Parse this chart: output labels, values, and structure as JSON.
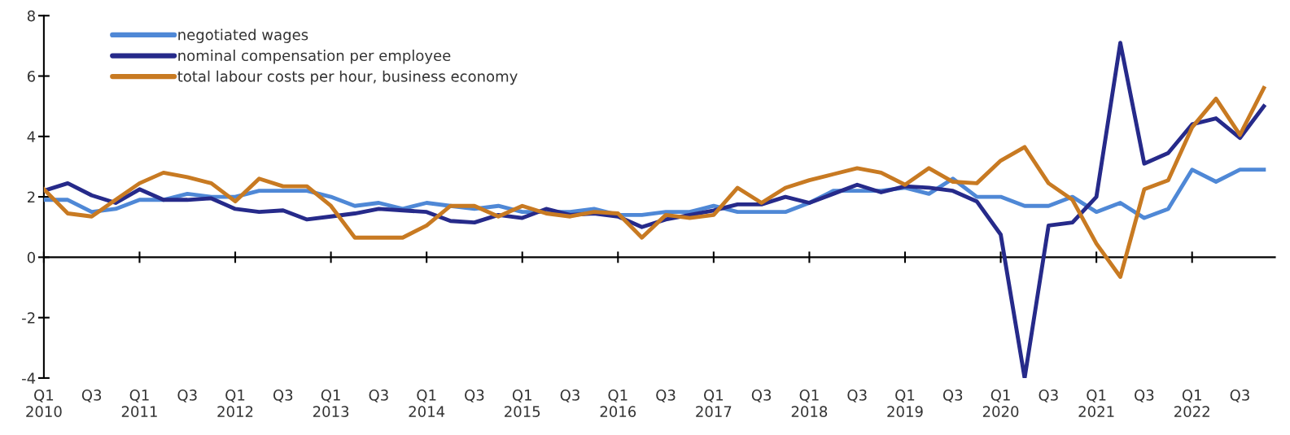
{
  "chart_data": {
    "type": "line",
    "categories": [
      "Q1\n2010",
      null,
      "Q3",
      null,
      "Q1\n2011",
      null,
      "Q3",
      null,
      "Q1\n2012",
      null,
      "Q3",
      null,
      "Q1\n2013",
      null,
      "Q3",
      null,
      "Q1\n2014",
      null,
      "Q3",
      null,
      "Q1\n2015",
      null,
      "Q3",
      null,
      "Q1\n2016",
      null,
      "Q3",
      null,
      "Q1\n2017",
      null,
      "Q3",
      null,
      "Q1\n2018",
      null,
      "Q3",
      null,
      "Q1\n2019",
      null,
      "Q3",
      null,
      "Q1\n2020",
      null,
      "Q3",
      null,
      "Q1\n2021",
      null,
      "Q3",
      null,
      "Q1\n2022",
      null,
      "Q3",
      null
    ],
    "series": [
      {
        "name": "negotiated wages",
        "color": "#4f88d6",
        "values": [
          1.9,
          1.9,
          1.5,
          1.6,
          1.9,
          1.9,
          2.1,
          2.0,
          2.0,
          2.2,
          2.2,
          2.2,
          2.0,
          1.7,
          1.8,
          1.6,
          1.8,
          1.7,
          1.6,
          1.7,
          1.5,
          1.5,
          1.5,
          1.6,
          1.4,
          1.4,
          1.5,
          1.5,
          1.7,
          1.5,
          1.5,
          1.5,
          1.8,
          2.2,
          2.2,
          2.2,
          2.3,
          2.1,
          2.6,
          2.0,
          2.0,
          1.7,
          1.7,
          2.0,
          1.5,
          1.8,
          1.3,
          1.6,
          2.9,
          2.5,
          2.9,
          2.9
        ]
      },
      {
        "name": "nominal compensation per employee",
        "color": "#262a8a",
        "values": [
          2.2,
          2.45,
          2.05,
          1.8,
          2.25,
          1.9,
          1.9,
          1.95,
          1.6,
          1.5,
          1.55,
          1.25,
          1.35,
          1.45,
          1.6,
          1.55,
          1.5,
          1.2,
          1.15,
          1.4,
          1.3,
          1.6,
          1.4,
          1.45,
          1.35,
          1.0,
          1.25,
          1.4,
          1.55,
          1.75,
          1.75,
          2.0,
          1.8,
          2.1,
          2.4,
          2.15,
          2.35,
          2.3,
          2.2,
          1.85,
          0.75,
          -4.0,
          1.05,
          1.15,
          2.0,
          7.1,
          3.1,
          3.45,
          4.4,
          4.6,
          3.95,
          5.0
        ]
      },
      {
        "name": "total labour costs per hour, business economy",
        "color": "#c87a22",
        "values": [
          2.25,
          1.45,
          1.35,
          1.9,
          2.45,
          2.8,
          2.65,
          2.45,
          1.85,
          2.6,
          2.35,
          2.35,
          1.7,
          0.65,
          0.65,
          0.65,
          1.05,
          1.7,
          1.7,
          1.35,
          1.7,
          1.45,
          1.35,
          1.5,
          1.45,
          0.65,
          1.4,
          1.3,
          1.4,
          2.3,
          1.8,
          2.3,
          2.55,
          2.75,
          2.95,
          2.8,
          2.4,
          2.95,
          2.5,
          2.45,
          3.2,
          3.65,
          2.45,
          1.9,
          0.45,
          -0.65,
          2.25,
          2.55,
          4.3,
          5.25,
          4.05,
          5.6
        ]
      }
    ],
    "ylim": [
      -4,
      8
    ],
    "yticks": [
      -4,
      -2,
      0,
      2,
      4,
      6,
      8
    ],
    "ref_lines": [
      {
        "axis": "y",
        "value": 0,
        "color": "#000000",
        "line_style": "solid"
      }
    ],
    "grid": false,
    "legend": "top left",
    "marker": "none",
    "line_style": "solid"
  }
}
